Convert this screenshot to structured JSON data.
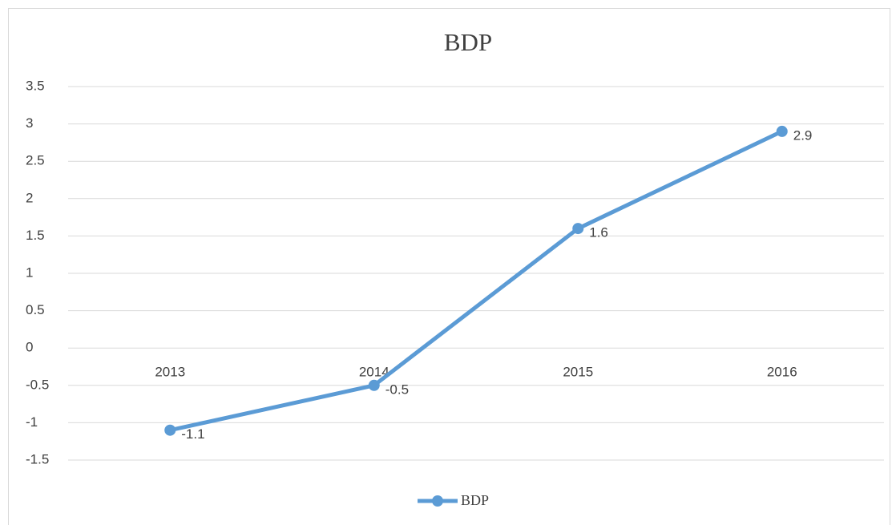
{
  "chart_data": {
    "type": "line",
    "title": "BDP",
    "categories": [
      "2013",
      "2014",
      "2015",
      "2016"
    ],
    "series": [
      {
        "name": "BDP",
        "color": "#5b9bd5",
        "values": [
          -1.1,
          -0.5,
          1.6,
          2.9
        ]
      }
    ],
    "ylim": [
      -1.5,
      3.5
    ],
    "yticks": [
      -1.5,
      -1,
      -0.5,
      0,
      0.5,
      1,
      1.5,
      2,
      2.5,
      3,
      3.5
    ],
    "grid": true,
    "legend": "bottom"
  }
}
